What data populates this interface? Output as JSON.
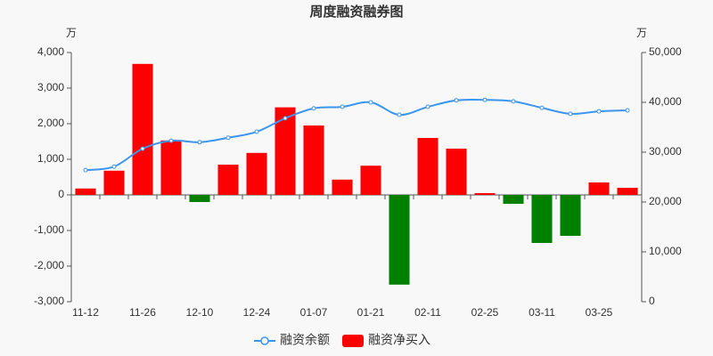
{
  "chart_data": {
    "type": "bar_line",
    "title": "周度融资融券图",
    "y_unit": "万",
    "y2_unit": "万",
    "categories": [
      "11-12",
      null,
      "11-26",
      null,
      "12-10",
      null,
      "12-24",
      null,
      "01-07",
      null,
      "01-21",
      null,
      "02-11",
      null,
      "02-25",
      null,
      "03-11",
      null,
      "03-25",
      null
    ],
    "series": [
      {
        "name": "融资余额",
        "type": "line",
        "axis": "y2",
        "color": "#3a96f0",
        "values": [
          26400,
          27100,
          30700,
          32300,
          32000,
          32900,
          34100,
          36800,
          38800,
          39100,
          40000,
          37500,
          39100,
          40400,
          40500,
          40200,
          38900,
          37700,
          38200,
          38400
        ]
      },
      {
        "name": "融资净买入",
        "type": "bar",
        "axis": "y",
        "color": "#ff0000",
        "negative_color": "#008000",
        "values": [
          180,
          680,
          3680,
          1530,
          -200,
          850,
          1180,
          2460,
          1950,
          430,
          820,
          -2520,
          1600,
          1300,
          50,
          -250,
          -1350,
          -1150,
          350,
          200
        ]
      }
    ],
    "ylim": [
      -3000,
      4000
    ],
    "yticks": [
      {
        "value": -3000,
        "label": "-3,000"
      },
      {
        "value": -2000,
        "label": "-2,000"
      },
      {
        "value": -1000,
        "label": "-1,000"
      },
      0,
      {
        "value": 1000,
        "label": "1,000"
      },
      {
        "value": 2000,
        "label": "2,000"
      },
      {
        "value": 3000,
        "label": "3,000"
      },
      {
        "value": 4000,
        "label": "4,000"
      }
    ],
    "y2lim": [
      0,
      50000
    ],
    "y2ticks": [
      0,
      {
        "value": 10000,
        "label": "10,000"
      },
      {
        "value": 20000,
        "label": "20,000"
      },
      {
        "value": 30000,
        "label": "30,000"
      },
      {
        "value": 40000,
        "label": "40,000"
      },
      {
        "value": 50000,
        "label": "50,000"
      }
    ],
    "legend": "bottom"
  }
}
